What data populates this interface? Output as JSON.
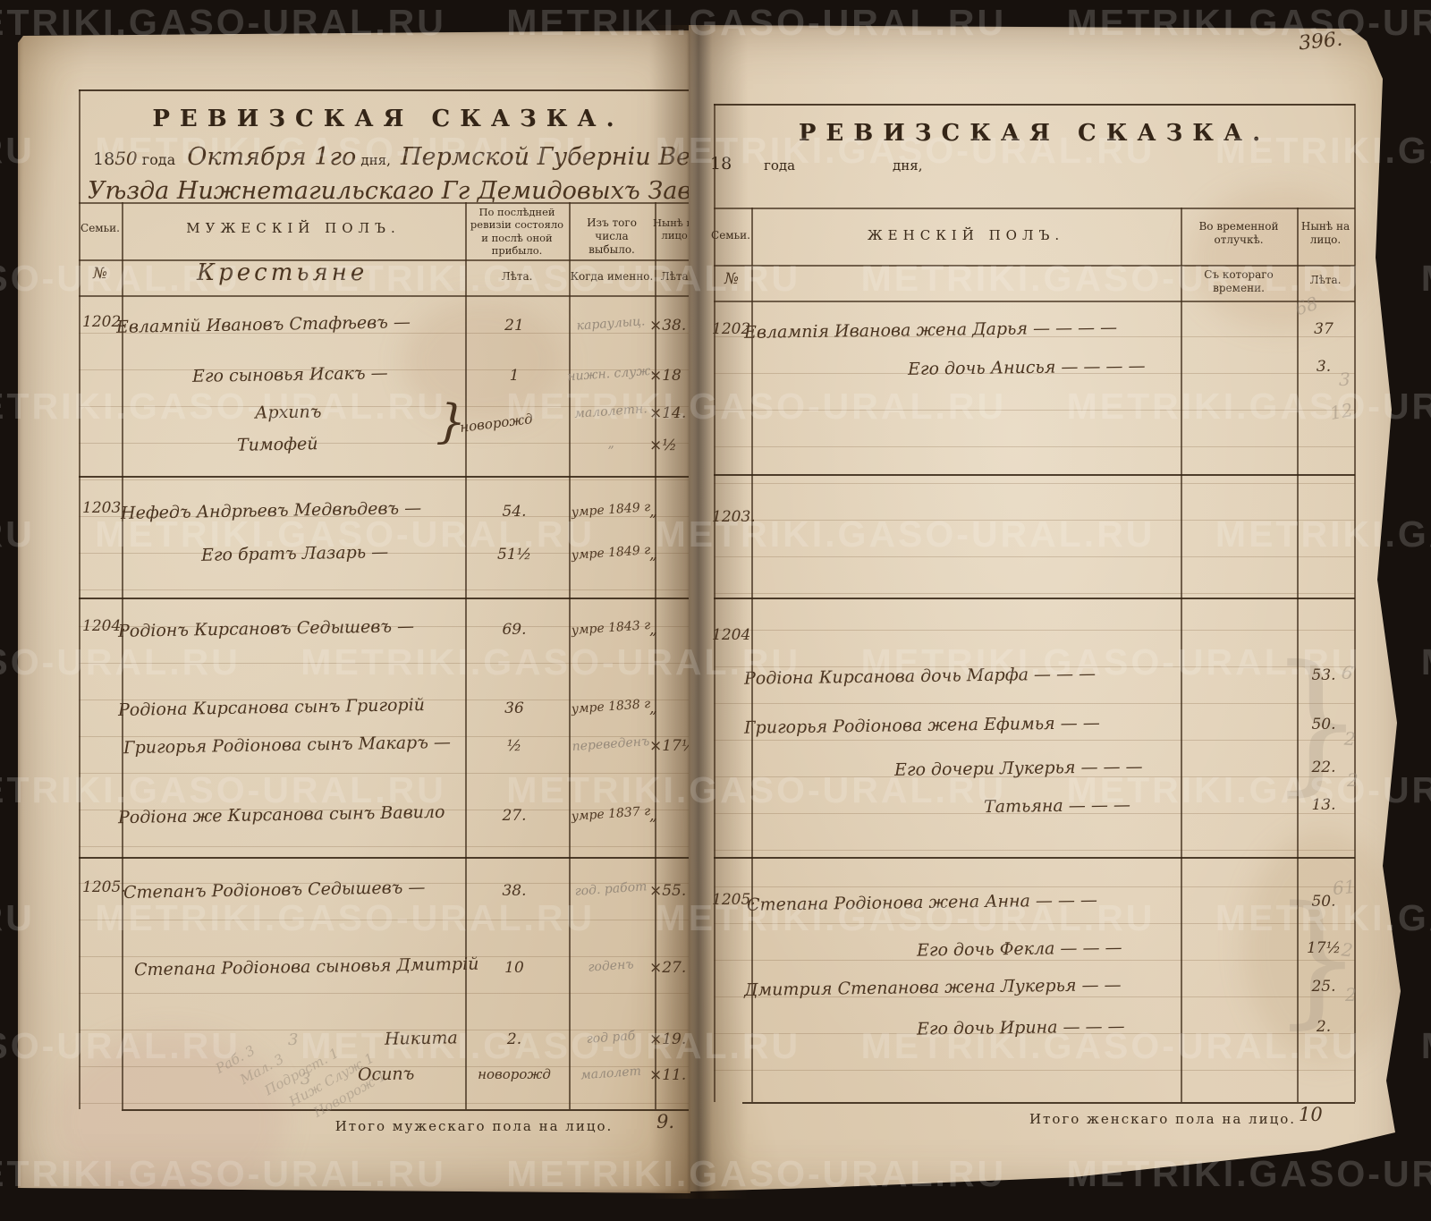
{
  "page_number": "396.",
  "watermark": {
    "text": "METRIKI.GASO-URAL.RU"
  },
  "left_page": {
    "title": "РЕВИЗСКАЯ СКАЗКА.",
    "date_line": {
      "year_printed": "18",
      "year_script": "50",
      "year_label": "года",
      "date_script": "Октября 1го",
      "day_label": "дня,",
      "place_script": "Пермской Губерніи Верхотуръ"
    },
    "place_line2": "Уѣзда Нижнетагильскаго Гг Демидовыхъ Завода",
    "table": {
      "col_family": "Семьи.",
      "col_main": "МУЖЕСКІЙ ПОЛЪ.",
      "col_revision": "По послѣдней ревизіи состояло и послѣ оной прибыло.",
      "col_departed": "Изъ того числа выбыло.",
      "col_present": "Нынѣ на лицо.",
      "sub_no": "№",
      "sub_category": "Крестьяне",
      "sub_years": "Лѣта.",
      "sub_when": "Когда именно.",
      "sub_years2": "Лѣта."
    },
    "family_numbers": [
      "1202.",
      "1203.",
      "1204.",
      "1205."
    ],
    "brace_note": "новорожд",
    "rows": [
      {
        "name": "Евлампій Ивановъ Стафѣевъ —",
        "years": "21",
        "when": "караулыц.",
        "when_style": "pencil",
        "now": "×38."
      },
      {
        "name": "Его сыновья Исакъ —",
        "years": "1",
        "when": "нижн. служ.",
        "when_style": "pencil",
        "now": "×18"
      },
      {
        "name": "Архипъ",
        "years": "",
        "when": "малолетн.",
        "when_style": "pencil",
        "now": "×14."
      },
      {
        "name": "Тимофей",
        "years": "",
        "when": "„",
        "when_style": "pencil",
        "now": "×½"
      },
      {
        "name": "Нефедъ Андрѣевъ Медвѣдевъ —",
        "years": "54.",
        "when": "умре 1849 г",
        "when_style": "ink",
        "now": "„"
      },
      {
        "name": "Его братъ Лазарь —",
        "years": "51½",
        "when": "умре 1849 г",
        "when_style": "ink",
        "now": "„"
      },
      {
        "name": "Родіонъ Кирсановъ Седышевъ —",
        "years": "69.",
        "when": "умре 1843 г",
        "when_style": "ink",
        "now": "„"
      },
      {
        "name": "Родіона Кирсанова сынъ Григорій",
        "years": "36",
        "when": "умре 1838 г",
        "when_style": "ink",
        "now": "„"
      },
      {
        "name": "Григорья Родіонова сынъ Макаръ —",
        "years": "½",
        "when": "переведенъ",
        "when_style": "pencil",
        "now": "×17½"
      },
      {
        "name": "Родіона же Кирсанова сынъ Вавило",
        "years": "27.",
        "when": "умре 1837 г",
        "when_style": "ink",
        "now": "„"
      },
      {
        "name": "Степанъ Родіоновъ Седышевъ —",
        "years": "38.",
        "when": "год. работ",
        "when_style": "pencil",
        "now": "×55."
      },
      {
        "name": "Степана Родіонова сыновья Дмитрій",
        "years": "10",
        "when": "годенъ",
        "when_style": "pencil",
        "now": "×27."
      },
      {
        "name": "Никита",
        "years": "2.",
        "when": "год раб",
        "when_style": "pencil",
        "now": "×19."
      },
      {
        "name": "Осипъ",
        "years": "новорожд",
        "years_style": "script",
        "when": "малолет",
        "when_style": "pencil",
        "now": "×11."
      }
    ],
    "total_label": "Итого мужескаго пола на лицо.",
    "total_value": "9."
  },
  "right_page": {
    "title": "РЕВИЗСКАЯ СКАЗКА.",
    "date_line": {
      "year_printed": "18",
      "year_label": "года",
      "day_label": "дня,"
    },
    "table": {
      "col_family": "Семьи.",
      "col_main": "ЖЕНСКІЙ ПОЛЪ.",
      "col_absence": "Во временной отлучкѣ.",
      "col_present": "Нынѣ на лицо.",
      "sub_no": "№",
      "sub_since": "Съ котораго времени.",
      "sub_years": "Лѣта."
    },
    "family_numbers": [
      "1202",
      "1203.",
      "1204",
      "1205."
    ],
    "rows": [
      {
        "name": "Евлампія Иванова жена Дарья — — — —",
        "age": "37"
      },
      {
        "name": "Его дочь Анисья — — — —",
        "age": "3."
      },
      {
        "name": "Родіона Кирсанова дочь Марфа — — —",
        "age": "53."
      },
      {
        "name": "Григорья Родіонова жена Ефимья — —",
        "age": "50."
      },
      {
        "name": "Его дочери Лукерья — — —",
        "age": "22."
      },
      {
        "name": "Татьяна — — —",
        "age": "13."
      },
      {
        "name": "Степана Родіонова жена Анна — — —",
        "age": "50."
      },
      {
        "name": "Его дочь Фекла — — —",
        "age": "17½"
      },
      {
        "name": "Дмитрия Степанова жена Лукерья — —",
        "age": "25."
      },
      {
        "name": "Его дочь Ирина — — —",
        "age": "2."
      }
    ],
    "total_label": "Итого женскаго пола на лицо.",
    "total_value": "10"
  },
  "margin_pencil_numbers": [
    "68",
    "3",
    "12",
    "6",
    "2",
    "2",
    "61",
    "2",
    "2"
  ],
  "pencil_notes": {
    "lines": [
      "Раб. 3",
      "Мал. 3",
      "Подрост. 1",
      "Ниж Служ 1",
      "Новорож 1"
    ],
    "loose": [
      "3",
      "3"
    ]
  }
}
